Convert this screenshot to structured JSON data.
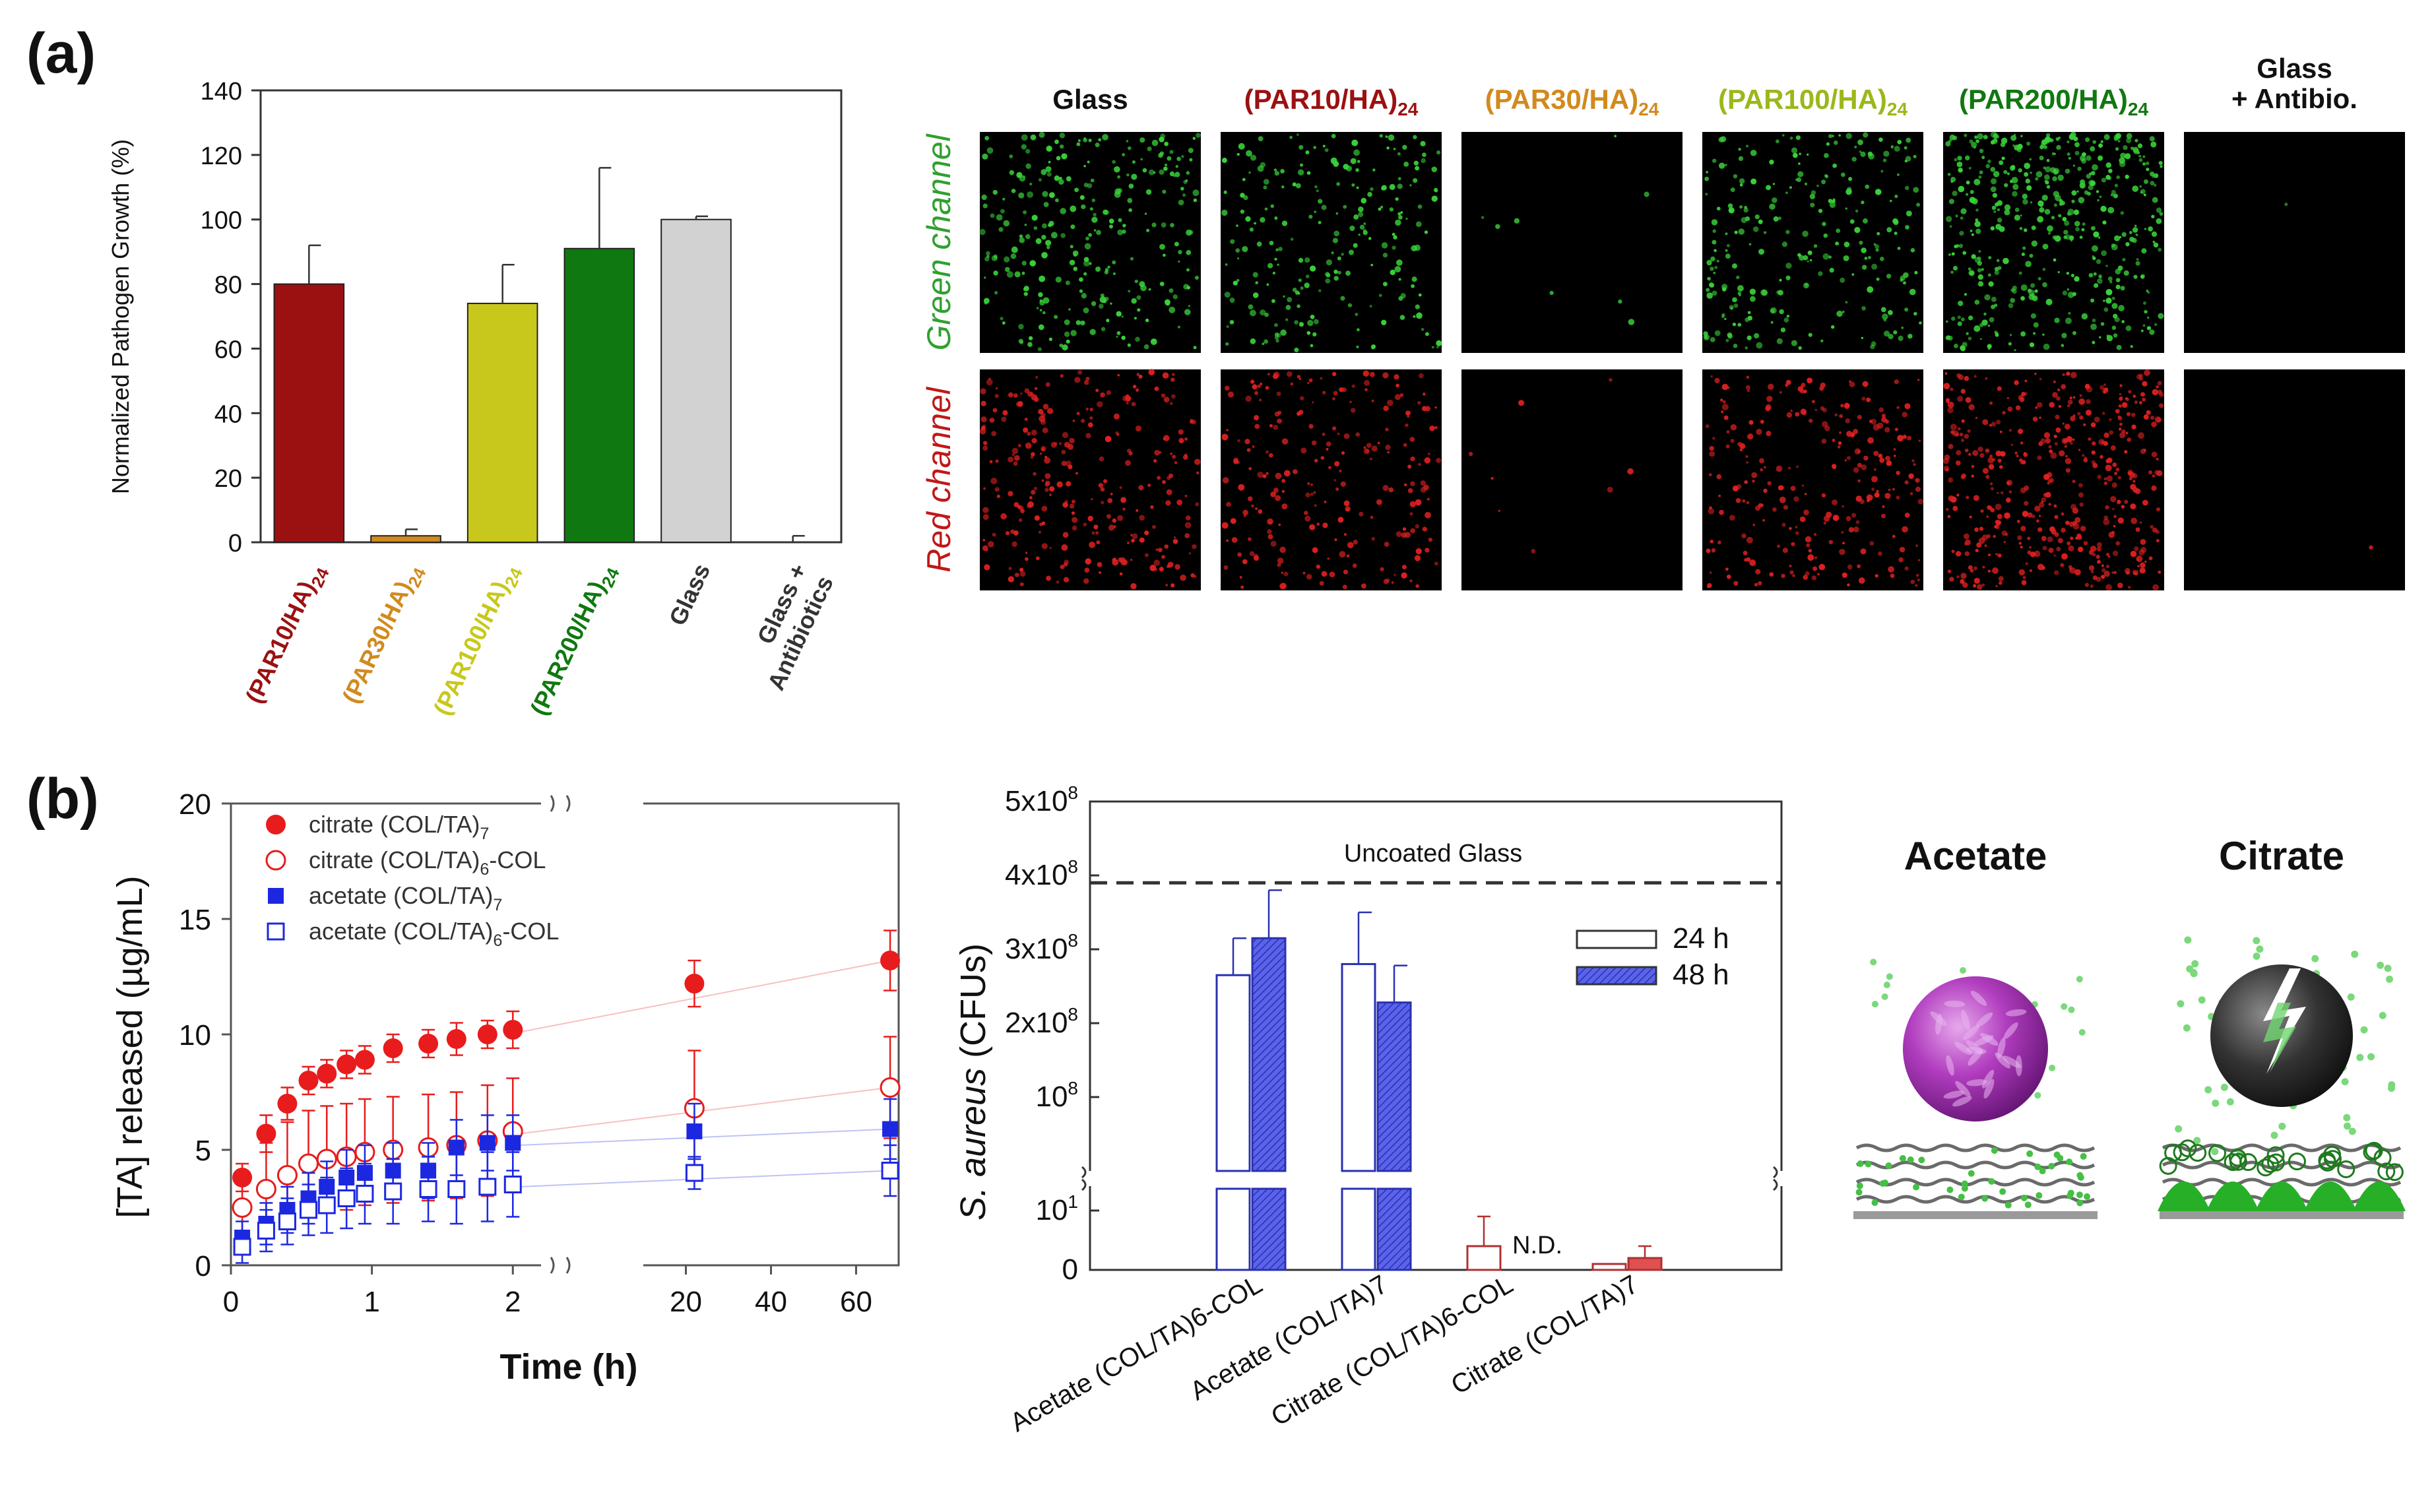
{
  "panel_labels": {
    "a": "(a)",
    "b": "(b)"
  },
  "colors": {
    "par10": "#9b1111",
    "par30": "#d28a1e",
    "par100": "#c8c81c",
    "par200": "#107810",
    "glass": "#d2d2d2",
    "citrate": "#e81c1c",
    "acetate": "#1c28e0",
    "micro_green": "#39d239",
    "micro_red": "#e02020",
    "ncd": "#b03030"
  },
  "chart_data": [
    {
      "type": "bar",
      "title": "",
      "ylabel": "Normalized Pathogen Growth (%)",
      "xlabel": "",
      "ylim": [
        0,
        140
      ],
      "yticks": [
        0,
        20,
        40,
        60,
        80,
        100,
        120,
        140
      ],
      "categories": [
        {
          "main": "(PAR10/HA)",
          "sub": "24",
          "color": "#9b1111"
        },
        {
          "main": "(PAR30/HA)",
          "sub": "24",
          "color": "#d28a1e"
        },
        {
          "main": "(PAR100/HA)",
          "sub": "24",
          "color": "#c8c81c"
        },
        {
          "main": "(PAR200/HA)",
          "sub": "24",
          "color": "#107810"
        },
        {
          "main": "Glass",
          "sub": "",
          "color": "#333333"
        },
        {
          "main": "Glass +",
          "line2": "Antibiotics",
          "sub": "",
          "color": "#333333"
        }
      ],
      "values": [
        80,
        2,
        74,
        91,
        100,
        0
      ],
      "errors": [
        12,
        2,
        12,
        25,
        1,
        2
      ]
    },
    {
      "type": "scatter",
      "ylabel": "[TA] released (µg/mL)",
      "xlabel": "Time (h)",
      "ylim": [
        0,
        20
      ],
      "yticks": [
        0,
        5,
        10,
        15,
        20
      ],
      "xticks_left": [
        "0",
        "1",
        "2"
      ],
      "xticks_right": [
        "20",
        "40",
        "60"
      ],
      "x_broken": true,
      "legend": [
        {
          "name": "citrate (COL/TA)",
          "sub": "7"
        },
        {
          "name": "citrate (COL/TA)",
          "sub": "6",
          "suffix": "-COL"
        },
        {
          "name": "acetate (COL/TA)",
          "sub": "7"
        },
        {
          "name": "acetate (COL/TA)",
          "sub": "6",
          "suffix": "-COL"
        }
      ],
      "series": [
        {
          "name": "citrate (COL/TA)7",
          "marker": "filled-circle",
          "color": "#e81c1c",
          "x": [
            0.08,
            0.25,
            0.4,
            0.55,
            0.68,
            0.82,
            0.95,
            1.15,
            1.4,
            1.6,
            1.82,
            2,
            22,
            68
          ],
          "y": [
            3.8,
            5.7,
            7.0,
            8.0,
            8.3,
            8.7,
            8.9,
            9.4,
            9.6,
            9.8,
            10.0,
            10.2,
            12.2,
            13.2
          ],
          "err": [
            0.6,
            0.8,
            0.7,
            0.6,
            0.6,
            0.6,
            0.6,
            0.6,
            0.6,
            0.7,
            0.6,
            0.8,
            1.0,
            1.3
          ]
        },
        {
          "name": "citrate (COL/TA)6-COL",
          "marker": "open-circle",
          "color": "#e81c1c",
          "x": [
            0.08,
            0.25,
            0.4,
            0.55,
            0.68,
            0.82,
            0.95,
            1.15,
            1.4,
            1.6,
            1.82,
            2,
            22,
            68
          ],
          "y": [
            2.5,
            3.3,
            3.9,
            4.4,
            4.6,
            4.7,
            4.9,
            5.0,
            5.1,
            5.2,
            5.4,
            5.8,
            6.8,
            7.7
          ],
          "err": [
            1.5,
            2.0,
            2.3,
            2.3,
            2.3,
            2.3,
            2.3,
            2.3,
            2.3,
            2.3,
            2.4,
            2.3,
            2.5,
            2.2
          ]
        },
        {
          "name": "acetate (COL/TA)7",
          "marker": "filled-square",
          "color": "#1c28e0",
          "x": [
            0.08,
            0.25,
            0.4,
            0.55,
            0.68,
            0.82,
            0.95,
            1.15,
            1.4,
            1.6,
            1.82,
            2,
            22,
            68
          ],
          "y": [
            1.2,
            1.8,
            2.4,
            2.9,
            3.4,
            3.8,
            4.0,
            4.1,
            4.1,
            5.1,
            5.3,
            5.3,
            5.8,
            5.9
          ],
          "err": [
            0.7,
            0.9,
            1.0,
            1.1,
            1.1,
            1.2,
            1.2,
            1.2,
            1.2,
            1.2,
            1.2,
            1.2,
            1.2,
            1.3
          ]
        },
        {
          "name": "acetate (COL/TA)6-COL",
          "marker": "open-square",
          "color": "#1c28e0",
          "x": [
            0.08,
            0.25,
            0.4,
            0.55,
            0.68,
            0.82,
            0.95,
            1.15,
            1.4,
            1.6,
            1.82,
            2,
            22,
            68
          ],
          "y": [
            0.8,
            1.5,
            1.9,
            2.4,
            2.6,
            2.9,
            3.1,
            3.2,
            3.3,
            3.3,
            3.4,
            3.5,
            4.0,
            4.1
          ],
          "err": [
            0.7,
            0.9,
            1.0,
            1.1,
            1.2,
            1.3,
            1.3,
            1.4,
            1.4,
            1.5,
            1.5,
            1.4,
            0.7,
            1.1
          ]
        }
      ]
    },
    {
      "type": "bar",
      "ylabel_italic": "S. aureus",
      "ylabel_rest": " (CFUs)",
      "y_broken": true,
      "yticks_top": [
        {
          "label": "10",
          "exp": "8",
          "value": 100000000
        },
        {
          "label": "2x10",
          "exp": "8",
          "value": 200000000
        },
        {
          "label": "3x10",
          "exp": "8",
          "value": 300000000
        },
        {
          "label": "4x10",
          "exp": "8",
          "value": 400000000
        },
        {
          "label": "5x10",
          "exp": "8",
          "value": 500000000
        }
      ],
      "yticks_bottom": [
        {
          "label": "0",
          "exp": "",
          "value": 0
        },
        {
          "label": "10",
          "exp": "1",
          "value": 10
        }
      ],
      "reference_line": {
        "label": "Uncoated Glass",
        "value": 390000000
      },
      "legend": [
        "24 h",
        "48 h"
      ],
      "categories": [
        "Acetate (COL/TA)6-COL",
        "Acetate (COL/TA)7",
        "Citrate (COL/TA)6-COL",
        "Citrate (COL/TA)7"
      ],
      "series": [
        {
          "name": "24 h",
          "values": [
            265000000,
            280000000,
            4,
            1
          ],
          "errors": [
            50000000,
            70000000,
            5,
            0
          ]
        },
        {
          "name": "48 h",
          "values": [
            315000000,
            228000000,
            null,
            2
          ],
          "errors": [
            65000000,
            50000000,
            null,
            2
          ]
        }
      ],
      "annotation": "N.D."
    }
  ],
  "micrographs": {
    "columns": [
      {
        "main": "Glass",
        "sub": "",
        "color": "#111111"
      },
      {
        "main": "(PAR10/HA)",
        "sub": "24",
        "color": "#9b1111"
      },
      {
        "main": "(PAR30/HA)",
        "sub": "24",
        "color": "#d28a1e"
      },
      {
        "main": "(PAR100/HA)",
        "sub": "24",
        "color": "#9ab81a"
      },
      {
        "main": "(PAR200/HA)",
        "sub": "24",
        "color": "#107810"
      },
      {
        "main": "Glass",
        "line2": "+ Antibio.",
        "sub": "",
        "color": "#111111"
      }
    ],
    "rows": [
      {
        "label": "Green channel",
        "color": "#2fa02f"
      },
      {
        "label": "Red channel",
        "color": "#c01818"
      }
    ],
    "density": [
      0.55,
      0.45,
      0.02,
      0.5,
      0.9,
      0.0
    ]
  },
  "schematic": {
    "labels": [
      "Acetate",
      "Citrate"
    ]
  }
}
